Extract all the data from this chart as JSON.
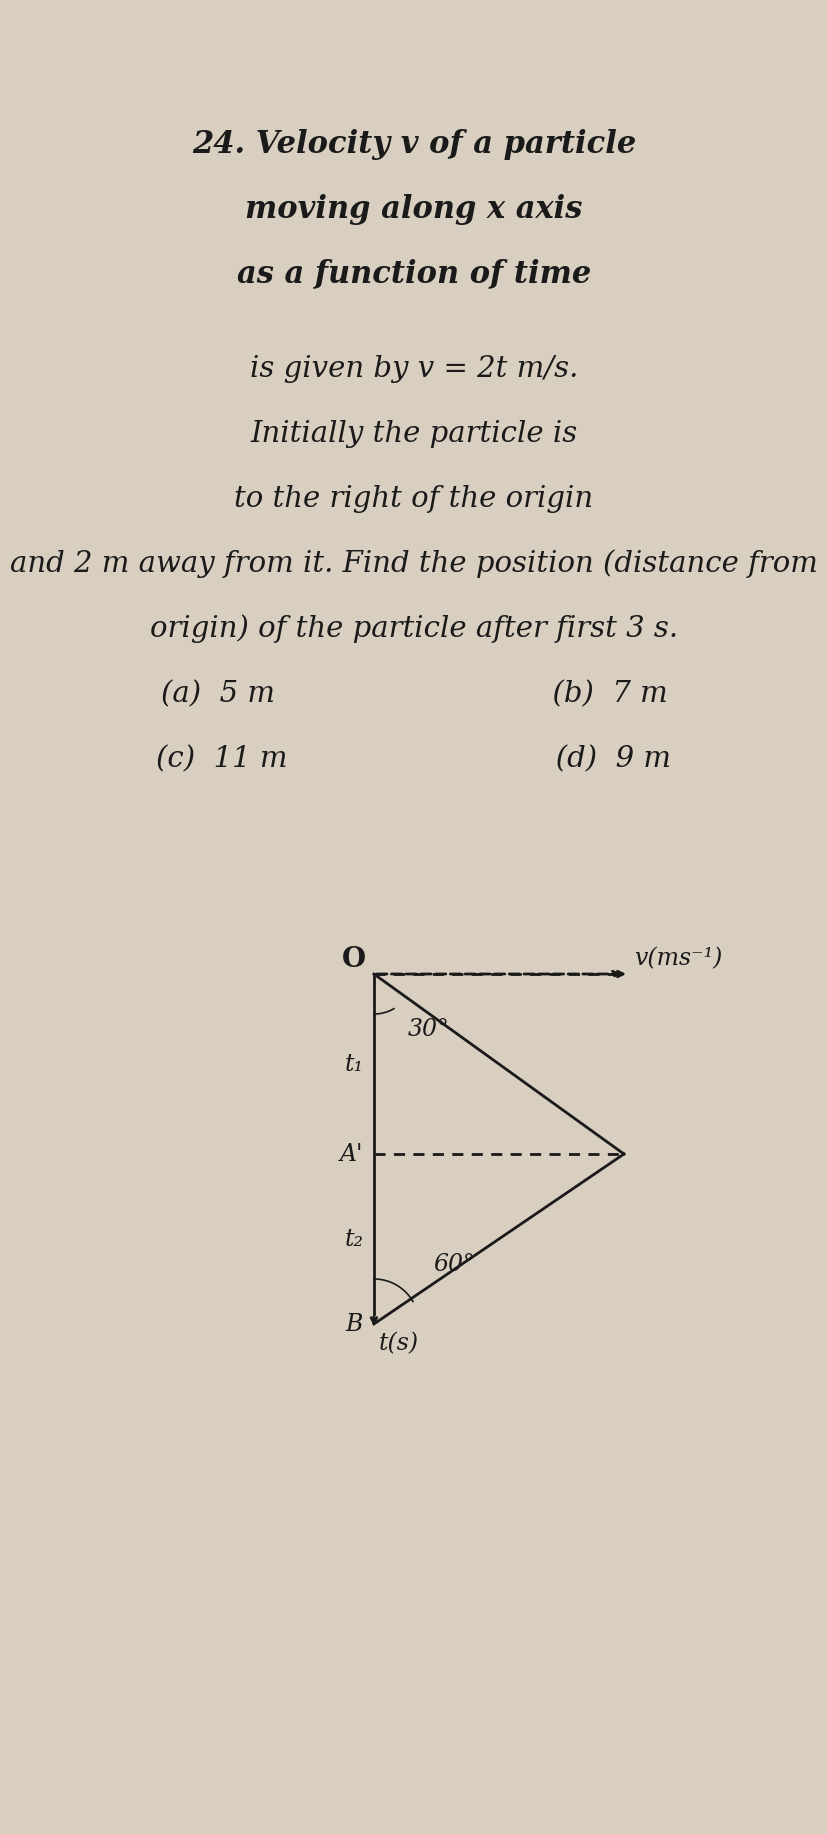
{
  "title_line1": "24. Velocity v of a particle",
  "title_line2": "moving along x axis",
  "title_line3": "as a function of time",
  "text_lines": [
    "is given by v = 2t m/s.",
    "Initially the particle is",
    "to the right of the origin",
    "and 2 m away from it. Find the position (distance from",
    "origin) of the particle after first 3 s.",
    "(a)  5 m                              (b)  7 m",
    "(c)  11 m                             (d)  9 m"
  ],
  "diagram": {
    "O_label": "O",
    "v_axis_label": "v(ms⁻¹)",
    "t_axis_label": "t(s)",
    "t1_label": "t₁",
    "A_label": "A'",
    "t2_label": "t₂",
    "B_label": "B",
    "angle1": "30°",
    "angle2": "60°"
  },
  "bg_color": "#d8cfc0",
  "text_color": "#1a1a1a",
  "diagram_color": "#1a1a1a"
}
